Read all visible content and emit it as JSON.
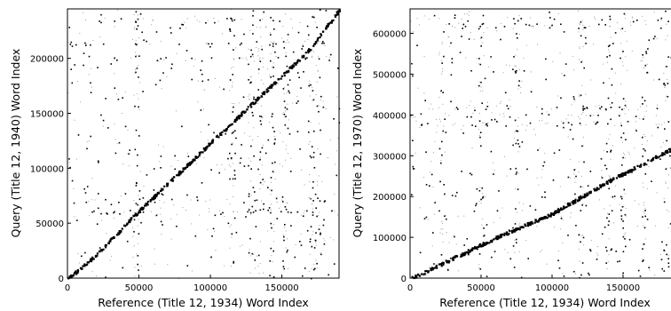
{
  "chart_data": [
    {
      "type": "scatter",
      "title": "",
      "xlabel": "Reference (Title 12, 1934) Word Index",
      "ylabel": "Query (Title 12, 1940) Word Index",
      "xlim": [
        0,
        190000
      ],
      "ylim": [
        0,
        245000
      ],
      "xticks": [
        0,
        50000,
        100000,
        150000
      ],
      "yticks": [
        0,
        50000,
        100000,
        150000,
        200000
      ],
      "grid": false,
      "legend": "none",
      "marker_color": "#000000",
      "diagonal_trend": {
        "description": "dense alignment band of matched words",
        "points": [
          [
            0,
            0
          ],
          [
            20000,
            22000
          ],
          [
            50000,
            62000
          ],
          [
            100000,
            124000
          ],
          [
            150000,
            185000
          ],
          [
            170000,
            210000
          ],
          [
            180000,
            228000
          ],
          [
            190000,
            245000
          ]
        ]
      },
      "noise": {
        "description": "sparse scattered matches across the full range",
        "x_range": [
          0,
          190000
        ],
        "y_range": [
          0,
          245000
        ],
        "dense_columns_x": [
          48000,
          115000,
          128000,
          135000,
          143000,
          152000,
          170000,
          175000
        ],
        "dense_rows_y": [
          60000,
          70000,
          200000,
          215000,
          235000
        ]
      }
    },
    {
      "type": "scatter",
      "title": "",
      "xlabel": "Reference (Title 12, 1934) Word Index",
      "ylabel": "Query (Title 12, 1970) Word Index",
      "xlim": [
        0,
        190000
      ],
      "ylim": [
        0,
        660000
      ],
      "xticks": [
        0,
        50000,
        100000,
        150000
      ],
      "yticks": [
        0,
        100000,
        200000,
        300000,
        400000,
        500000,
        600000
      ],
      "grid": false,
      "legend": "none",
      "marker_color": "#000000",
      "diagonal_trend": {
        "description": "dense alignment band of matched words",
        "points": [
          [
            0,
            0
          ],
          [
            30000,
            50000
          ],
          [
            60000,
            100000
          ],
          [
            100000,
            160000
          ],
          [
            140000,
            240000
          ],
          [
            160000,
            275000
          ],
          [
            185000,
            320000
          ],
          [
            190000,
            330000
          ]
        ]
      },
      "noise": {
        "description": "sparse scattered matches across the full range",
        "x_range": [
          0,
          190000
        ],
        "y_range": [
          0,
          660000
        ],
        "dense_columns_x": [
          22000,
          50000,
          75000,
          120000,
          140000,
          150000,
          165000,
          180000
        ],
        "dense_rows_y": [
          380000,
          400000,
          420000,
          620000,
          640000
        ]
      }
    }
  ]
}
